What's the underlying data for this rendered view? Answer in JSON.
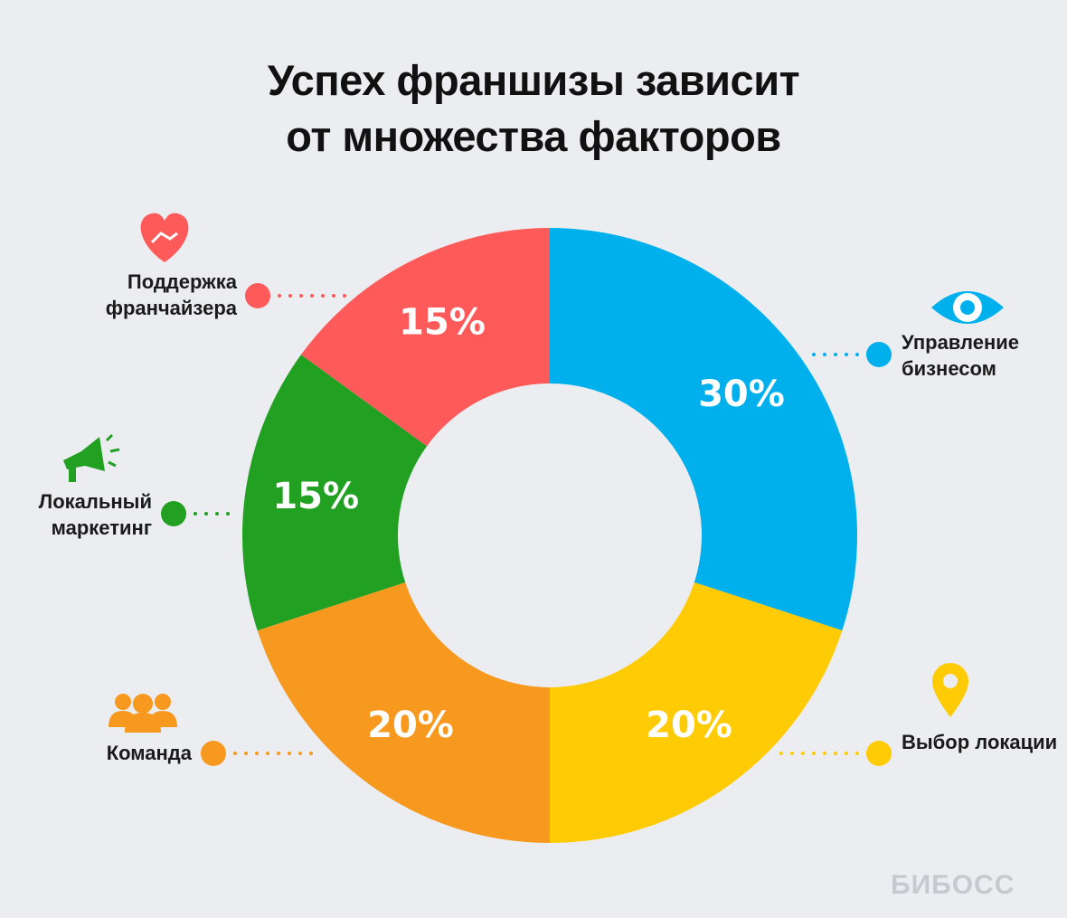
{
  "chart_data": {
    "type": "donut",
    "title": "Успех франшизы зависит от множества факторов",
    "categories": [
      "Управление бизнесом",
      "Выбор локации",
      "Команда",
      "Локальный маркетинг",
      "Поддержка франчайзера"
    ],
    "values": [
      30,
      20,
      20,
      15,
      15
    ],
    "value_labels": [
      "30%",
      "20%",
      "20%",
      "15%",
      "15%"
    ],
    "colors": [
      "#00b0ec",
      "#fecb05",
      "#f7981f",
      "#22a022",
      "#fe5a5a"
    ],
    "watermark": "БИБОСС"
  }
}
